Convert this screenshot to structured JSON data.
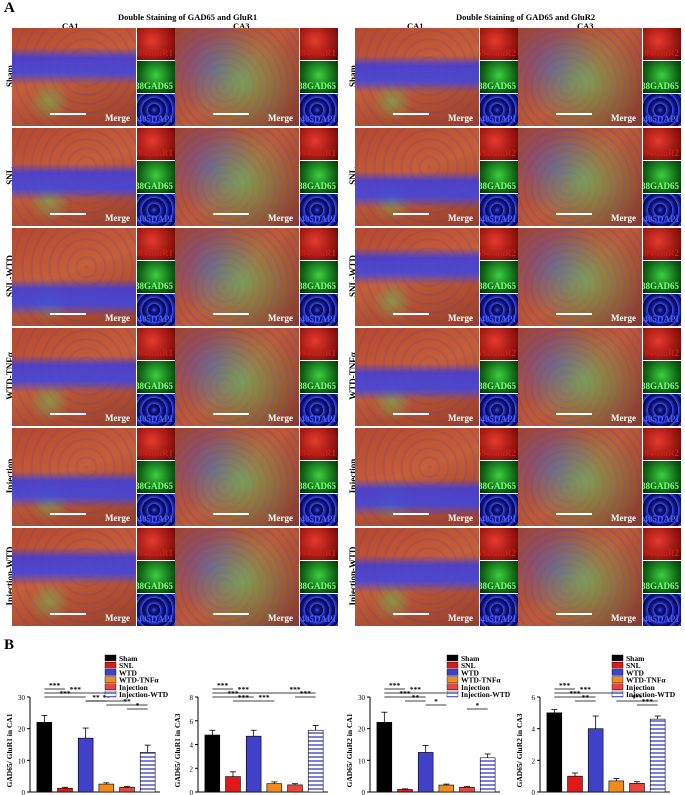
{
  "panel_a_letter": "A",
  "panel_b_letter": "B",
  "group_titles": [
    "Double Staining of GAD65 and GluR1",
    "Double Staining of GAD65 and GluR2"
  ],
  "column_labels": [
    "CA1",
    "CA3",
    "CA1",
    "CA3"
  ],
  "row_labels": [
    "Sham",
    "SNL",
    "SNL-WTD",
    "WTD-TNFα",
    "Injection",
    "Injection-WTD"
  ],
  "channel_labels": {
    "glur1": "594GluR1",
    "glur2": "594GluR2",
    "gad": "488GAD65",
    "dapi": "405DAPI",
    "merge": "Merge"
  },
  "colors": {
    "red_channel": "#c8201a",
    "green_channel": "#22b02a",
    "blue_channel": "#1f2fd6",
    "merge_base": "#b34a2c",
    "bar_sham": "#000000",
    "bar_snl": "#e01818",
    "bar_wtd": "#4040c8",
    "bar_wtd_tnf": "#f28a1c",
    "bar_injection": "#e8453c",
    "bar_injection_wtd": "#7a80e0"
  },
  "legend": [
    "Sham",
    "SNL",
    "WTD",
    "WTD-TNFα",
    "Injection",
    "Injection-WTD"
  ],
  "chart_data": [
    {
      "type": "bar",
      "categories": [
        "Sham",
        "SNL",
        "WTD",
        "WTD-TNFα",
        "Injection",
        "Injection-WTD"
      ],
      "values": [
        22,
        1.2,
        17,
        2.5,
        1.5,
        12.5
      ],
      "errors": [
        2.2,
        0.3,
        3.2,
        0.4,
        0.3,
        2.3
      ],
      "ylabel": "GAD65/ GluR1 in CA1",
      "ylim": [
        0,
        30
      ],
      "yticks": [
        0,
        10,
        20,
        30
      ],
      "significance": [
        "***",
        "***",
        "***",
        "**",
        "**",
        "**",
        "*"
      ]
    },
    {
      "type": "bar",
      "categories": [
        "Sham",
        "SNL",
        "WTD",
        "WTD-TNFα",
        "Injection",
        "Injection-WTD"
      ],
      "values": [
        4.8,
        1.3,
        4.7,
        0.7,
        0.6,
        5.2
      ],
      "errors": [
        0.4,
        0.4,
        0.5,
        0.15,
        0.1,
        0.4
      ],
      "ylabel": "GAD65/ GluR1 in CA3",
      "ylim": [
        0,
        8
      ],
      "yticks": [
        0,
        2,
        4,
        6,
        8
      ],
      "significance": [
        "***",
        "***",
        "***",
        "***",
        "***",
        "***",
        "***"
      ]
    },
    {
      "type": "bar",
      "categories": [
        "Sham",
        "SNL",
        "WTD",
        "WTD-TNFα",
        "Injection",
        "Injection-WTD"
      ],
      "values": [
        22,
        0.8,
        12.5,
        2.2,
        1.5,
        10.8
      ],
      "errors": [
        3.2,
        0.2,
        2.2,
        0.3,
        0.3,
        1.2
      ],
      "ylabel": "GAD65/ GluR2 in CA1",
      "ylim": [
        0,
        30
      ],
      "yticks": [
        0,
        10,
        20,
        30
      ],
      "significance": [
        "***",
        "***",
        "***",
        "**",
        "*",
        "*"
      ]
    },
    {
      "type": "bar",
      "categories": [
        "Sham",
        "SNL",
        "WTD",
        "WTD-TNFα",
        "Injection",
        "Injection-WTD"
      ],
      "values": [
        5.0,
        1.0,
        4.0,
        0.7,
        0.55,
        4.6
      ],
      "errors": [
        0.2,
        0.2,
        0.8,
        0.15,
        0.1,
        0.2
      ],
      "ylabel": "GAD65/ GluR2 in CA3",
      "ylim": [
        0,
        6
      ],
      "yticks": [
        0,
        2,
        4,
        6
      ],
      "significance": [
        "***",
        "***",
        "***",
        "**",
        "***",
        "***"
      ]
    }
  ]
}
